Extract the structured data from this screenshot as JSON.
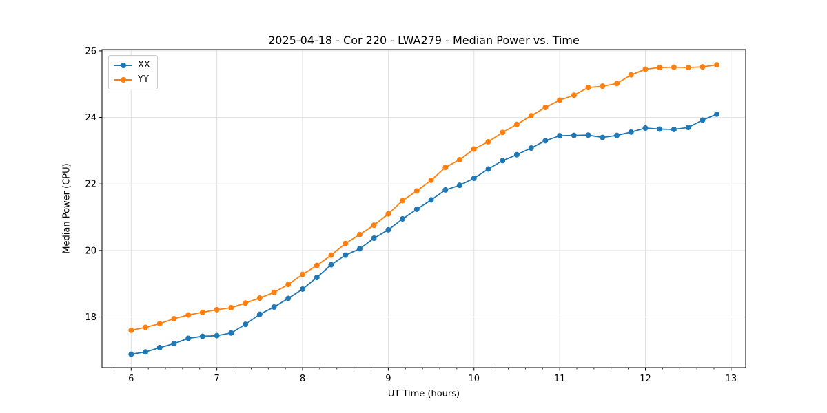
{
  "chart_data": {
    "type": "line",
    "title": "2025-04-18 - Cor 220 - LWA279 - Median Power vs. Time",
    "xlabel": "UT Time (hours)",
    "ylabel": "Median Power (CPU)",
    "xlim": [
      5.66,
      13.17
    ],
    "ylim": [
      16.48,
      26.04
    ],
    "xticks": [
      6,
      7,
      8,
      9,
      10,
      11,
      12,
      13
    ],
    "yticks": [
      18,
      20,
      22,
      24,
      26
    ],
    "x_minor_step": 0.2,
    "grid": true,
    "legend_position": "upper-left",
    "x": [
      6,
      6.167,
      6.333,
      6.5,
      6.667,
      6.833,
      7,
      7.167,
      7.333,
      7.5,
      7.667,
      7.833,
      8,
      8.167,
      8.333,
      8.5,
      8.667,
      8.833,
      9,
      9.167,
      9.333,
      9.5,
      9.667,
      9.833,
      10,
      10.167,
      10.333,
      10.5,
      10.667,
      10.833,
      11,
      11.167,
      11.333,
      11.5,
      11.667,
      11.833,
      12,
      12.167,
      12.333,
      12.5,
      12.667,
      12.833
    ],
    "series": [
      {
        "name": "XX",
        "color": "#1f77b4",
        "values": [
          16.88,
          16.95,
          17.08,
          17.2,
          17.36,
          17.42,
          17.44,
          17.52,
          17.78,
          18.08,
          18.3,
          18.56,
          18.84,
          19.19,
          19.57,
          19.86,
          20.05,
          20.37,
          20.62,
          20.95,
          21.24,
          21.52,
          21.82,
          21.96,
          22.17,
          22.45,
          22.7,
          22.88,
          23.08,
          23.3,
          23.45,
          23.46,
          23.47,
          23.4,
          23.46,
          23.56,
          23.68,
          23.65,
          23.64,
          23.7,
          23.92,
          24.1
        ]
      },
      {
        "name": "YY",
        "color": "#ff7f0e",
        "values": [
          17.6,
          17.69,
          17.8,
          17.95,
          18.06,
          18.14,
          18.22,
          18.28,
          18.42,
          18.57,
          18.74,
          18.98,
          19.28,
          19.55,
          19.86,
          20.21,
          20.48,
          20.76,
          21.1,
          21.5,
          21.79,
          22.11,
          22.5,
          22.73,
          23.05,
          23.27,
          23.55,
          23.79,
          24.05,
          24.3,
          24.52,
          24.67,
          24.9,
          24.94,
          25.02,
          25.28,
          25.45,
          25.5,
          25.51,
          25.5,
          25.52,
          25.58
        ]
      }
    ],
    "style": {
      "grid_color": "#e0e0e0",
      "spine_color": "#000000",
      "tick_color": "#000000",
      "marker_radius": 4,
      "line_width": 1.8
    }
  }
}
